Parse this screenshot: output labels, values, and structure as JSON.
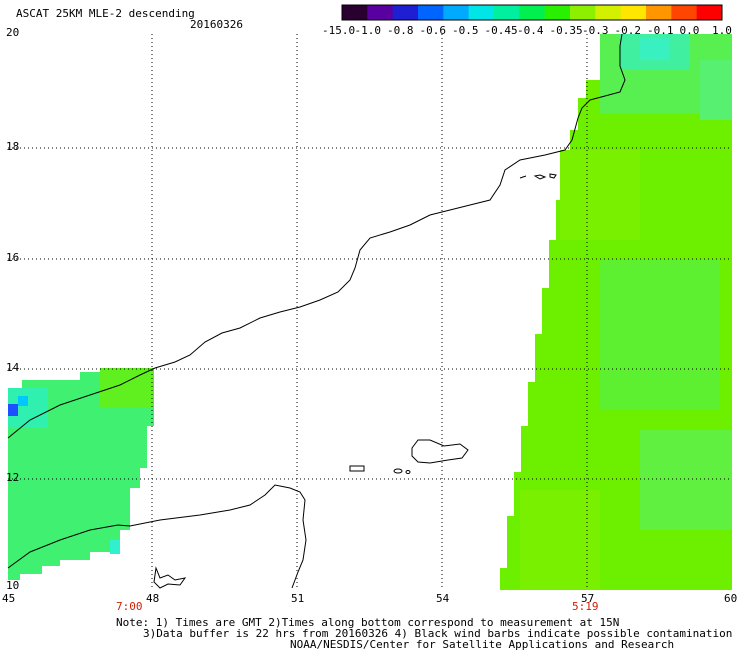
{
  "header": {
    "title": "ASCAT 25KM MLE-2 descending",
    "date": "20160326"
  },
  "colorbar": {
    "colors": [
      "#2a0030",
      "#5a00a0",
      "#1e1ed2",
      "#0064ff",
      "#00aaff",
      "#00e6e6",
      "#00f0a0",
      "#00f050",
      "#28f000",
      "#8cf000",
      "#d2f000",
      "#ffe600",
      "#ff9600",
      "#ff4600",
      "#ff0000"
    ],
    "labels": [
      "-15.0",
      "-1.0",
      "-0.8",
      "-0.6",
      "-0.5",
      "-0.45",
      "-0.4",
      "-0.35",
      "-0.3",
      "-0.2",
      "-0.1",
      "0.0",
      "1.0"
    ]
  },
  "axes": {
    "x_labels": [
      "45",
      "48",
      "51",
      "54",
      "57",
      "60"
    ],
    "y_labels": [
      "20",
      "18",
      "16",
      "14",
      "12",
      "10"
    ],
    "times": [
      {
        "lon": "48",
        "label": "7:00"
      },
      {
        "lon": "57",
        "label": "5:19"
      }
    ]
  },
  "footer": {
    "line1": "Note: 1) Times are GMT 2)Times along bottom correspond to measurement at 15N",
    "line2": "3)Data buffer is 22 hrs from 20160326 4) Black wind barbs indicate possible contamination",
    "line3": "NOAA/NESDIS/Center for Satellite Applications and Research"
  }
}
